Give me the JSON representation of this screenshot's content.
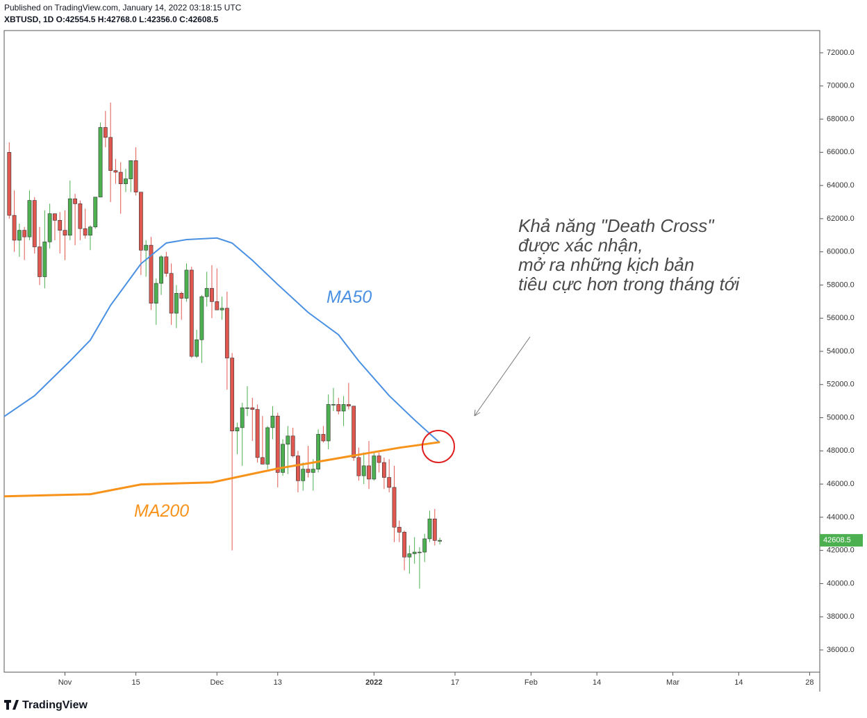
{
  "header": {
    "published": "Published on TradingView.com, January 14, 2022 03:18:15 UTC",
    "symbol": "XBTUSD, 1D O:42554.5 H:42768.0 L:42356.0 C:42608.5"
  },
  "footer": {
    "brand": "TradingView"
  },
  "chart_data": {
    "type": "candlestick",
    "annotations": [
      "Khả năng \"Death Cross\"",
      "được xác nhận,",
      "mở ra những kịch bản",
      "tiêu cực hơn trong tháng tới"
    ],
    "up_color": "#4caf50",
    "down_color": "#e0574f",
    "xlim": [
      "2021-10-20",
      "2022-03-30"
    ],
    "xticks": [
      {
        "value": "2021-11-01",
        "label": "Nov"
      },
      {
        "value": "2021-11-15",
        "label": "15"
      },
      {
        "value": "2021-12-01",
        "label": "Dec"
      },
      {
        "value": "2021-12-13",
        "label": "13"
      },
      {
        "value": "2022-01-01",
        "label": "2022"
      },
      {
        "value": "2022-01-17",
        "label": "17"
      },
      {
        "value": "2022-02-01",
        "label": "Feb"
      },
      {
        "value": "2022-02-14",
        "label": "14"
      },
      {
        "value": "2022-03-01",
        "label": "Mar"
      },
      {
        "value": "2022-03-14",
        "label": "14"
      },
      {
        "value": "2022-03-28",
        "label": "28"
      }
    ],
    "ylim": [
      34660,
      73340
    ],
    "yticks": [
      {
        "value": 36000,
        "label": "36000.0"
      },
      {
        "value": 38000,
        "label": "38000.0"
      },
      {
        "value": 40000,
        "label": "40000.0"
      },
      {
        "value": 42000,
        "label": "42000.0"
      },
      {
        "value": 44000,
        "label": "44000.0"
      },
      {
        "value": 46000,
        "label": "46000.0"
      },
      {
        "value": 48000,
        "label": "48000.0"
      },
      {
        "value": 50000,
        "label": "50000.0"
      },
      {
        "value": 52000,
        "label": "52000.0"
      },
      {
        "value": 54000,
        "label": "54000.0"
      },
      {
        "value": 56000,
        "label": "56000.0"
      },
      {
        "value": 58000,
        "label": "58000.0"
      },
      {
        "value": 60000,
        "label": "60000.0"
      },
      {
        "value": 62000,
        "label": "62000.0"
      },
      {
        "value": 64000,
        "label": "64000.0"
      },
      {
        "value": 66000,
        "label": "66000.0"
      },
      {
        "value": 68000,
        "label": "68000.0"
      },
      {
        "value": 70000,
        "label": "70000.0"
      },
      {
        "value": 72000,
        "label": "72000.0"
      }
    ],
    "x": [
      "2021-10-21",
      "2021-10-22",
      "2021-10-23",
      "2021-10-24",
      "2021-10-25",
      "2021-10-26",
      "2021-10-27",
      "2021-10-28",
      "2021-10-29",
      "2021-10-30",
      "2021-10-31",
      "2021-11-01",
      "2021-11-02",
      "2021-11-03",
      "2021-11-04",
      "2021-11-05",
      "2021-11-06",
      "2021-11-07",
      "2021-11-08",
      "2021-11-09",
      "2021-11-10",
      "2021-11-11",
      "2021-11-12",
      "2021-11-13",
      "2021-11-14",
      "2021-11-15",
      "2021-11-16",
      "2021-11-17",
      "2021-11-18",
      "2021-11-19",
      "2021-11-20",
      "2021-11-21",
      "2021-11-22",
      "2021-11-23",
      "2021-11-24",
      "2021-11-25",
      "2021-11-26",
      "2021-11-27",
      "2021-11-28",
      "2021-11-29",
      "2021-11-30",
      "2021-12-01",
      "2021-12-02",
      "2021-12-03",
      "2021-12-04",
      "2021-12-05",
      "2021-12-06",
      "2021-12-07",
      "2021-12-08",
      "2021-12-09",
      "2021-12-10",
      "2021-12-11",
      "2021-12-12",
      "2021-12-13",
      "2021-12-14",
      "2021-12-15",
      "2021-12-16",
      "2021-12-17",
      "2021-12-18",
      "2021-12-19",
      "2021-12-20",
      "2021-12-21",
      "2021-12-22",
      "2021-12-23",
      "2021-12-24",
      "2021-12-25",
      "2021-12-26",
      "2021-12-27",
      "2021-12-28",
      "2021-12-29",
      "2021-12-30",
      "2021-12-31",
      "2022-01-01",
      "2022-01-02",
      "2022-01-03",
      "2022-01-04",
      "2022-01-05",
      "2022-01-06",
      "2022-01-07",
      "2022-01-08",
      "2022-01-09",
      "2022-01-10",
      "2022-01-11",
      "2022-01-12",
      "2022-01-13",
      "2022-01-14"
    ],
    "open": [
      66000,
      62200,
      60700,
      61300,
      60900,
      63100,
      60300,
      58500,
      60600,
      62300,
      61900,
      61300,
      61000,
      63200,
      62900,
      61400,
      61000,
      61500,
      63300,
      67500,
      66900,
      64900,
      64800,
      64100,
      64400,
      65500,
      63600,
      60100,
      60400,
      56900,
      58100,
      59700,
      58700,
      56300,
      57500,
      57200,
      58900,
      53700,
      54700,
      57300,
      57800,
      57000,
      56500,
      56600,
      53600,
      49200,
      49400,
      50600,
      50600,
      50500,
      47600,
      47200,
      49400,
      50100,
      46700,
      48400,
      48900,
      47700,
      46200,
      46900,
      46700,
      46900,
      49000,
      48600,
      50800,
      50800,
      50400,
      50800,
      50700,
      47600,
      46500,
      47100,
      46300,
      47700,
      47300,
      46400,
      45800,
      43400,
      43100,
      41600,
      41800,
      41900,
      41900,
      42700,
      43900,
      42554.5
    ],
    "high": [
      66600,
      63700,
      61700,
      61500,
      63700,
      63300,
      61500,
      62500,
      62900,
      62300,
      62400,
      62500,
      64300,
      63500,
      63100,
      62600,
      61600,
      63300,
      67800,
      68500,
      69000,
      65600,
      65400,
      65000,
      65500,
      66300,
      63600,
      60700,
      60900,
      58400,
      59800,
      60000,
      59300,
      58000,
      57600,
      59300,
      59100,
      55300,
      57400,
      58800,
      59200,
      59000,
      57300,
      57600,
      53900,
      49700,
      50900,
      51900,
      51200,
      50800,
      50100,
      49500,
      50700,
      50300,
      48700,
      49500,
      49400,
      48000,
      47300,
      48300,
      47500,
      49300,
      49500,
      51400,
      51800,
      51200,
      51300,
      52100,
      50700,
      48200,
      47900,
      48600,
      47900,
      47900,
      47600,
      47500,
      47100,
      43800,
      43200,
      42300,
      42800,
      42200,
      43000,
      44400,
      44500,
      42768
    ],
    "low": [
      62000,
      60000,
      59700,
      59500,
      60700,
      59900,
      58000,
      57800,
      60200,
      60700,
      59900,
      59500,
      60700,
      60400,
      60700,
      60800,
      60100,
      61400,
      63300,
      66300,
      63000,
      64100,
      62300,
      63600,
      63600,
      63400,
      58600,
      58500,
      56500,
      55600,
      57400,
      58500,
      55600,
      55400,
      55900,
      57000,
      53600,
      53600,
      53300,
      56700,
      56000,
      56500,
      55900,
      51700,
      42000,
      47800,
      47100,
      50100,
      48600,
      47300,
      47300,
      46900,
      48700,
      45800,
      46500,
      46600,
      47600,
      45500,
      45600,
      46400,
      45600,
      46700,
      48500,
      48100,
      50400,
      50200,
      49500,
      50500,
      47400,
      46200,
      46000,
      45700,
      46200,
      46700,
      45700,
      45500,
      42500,
      42500,
      40800,
      40600,
      41200,
      39700,
      41300,
      42500,
      42300,
      42356
    ],
    "close": [
      62200,
      60700,
      61300,
      60900,
      63100,
      60300,
      58500,
      60600,
      62300,
      61900,
      61300,
      61000,
      63200,
      62900,
      61400,
      61000,
      61500,
      63300,
      67500,
      66900,
      64900,
      64800,
      64100,
      64400,
      65500,
      63600,
      60100,
      60400,
      56900,
      58100,
      59700,
      58700,
      56300,
      57500,
      57200,
      58900,
      53700,
      54700,
      57300,
      57800,
      57000,
      56500,
      56600,
      53600,
      49200,
      49400,
      50600,
      50600,
      50500,
      47600,
      47200,
      49400,
      50100,
      46700,
      48400,
      48900,
      47700,
      46200,
      46900,
      46700,
      46900,
      49000,
      48600,
      50800,
      50800,
      50400,
      50800,
      50700,
      47600,
      46500,
      47100,
      46300,
      47700,
      47300,
      46400,
      45800,
      43400,
      43100,
      41600,
      41800,
      41900,
      41900,
      42700,
      43900,
      42600,
      42608.5
    ],
    "series": [
      {
        "name": "MA50",
        "color": "#4a90e2",
        "x": [
          "2021-10-20",
          "2021-10-26",
          "2021-11-02",
          "2021-11-06",
          "2021-11-10",
          "2021-11-16",
          "2021-11-21",
          "2021-11-25",
          "2021-12-01",
          "2021-12-04",
          "2021-12-08",
          "2021-12-13",
          "2021-12-19",
          "2021-12-25",
          "2021-12-29",
          "2022-01-04",
          "2022-01-09",
          "2022-01-14"
        ],
        "values": [
          50075,
          51330,
          53420,
          54680,
          56770,
          59280,
          60530,
          60740,
          60830,
          60530,
          59490,
          58030,
          56350,
          55000,
          53420,
          51330,
          49870,
          48490
        ]
      },
      {
        "name": "MA200",
        "color": "#f7931a",
        "x": [
          "2021-10-20",
          "2021-11-06",
          "2021-11-16",
          "2021-11-30",
          "2021-12-13",
          "2021-12-21",
          "2021-12-29",
          "2022-01-06",
          "2022-01-14"
        ],
        "values": [
          45260,
          45390,
          45980,
          46100,
          46940,
          47350,
          47770,
          48190,
          48530
        ]
      }
    ]
  }
}
